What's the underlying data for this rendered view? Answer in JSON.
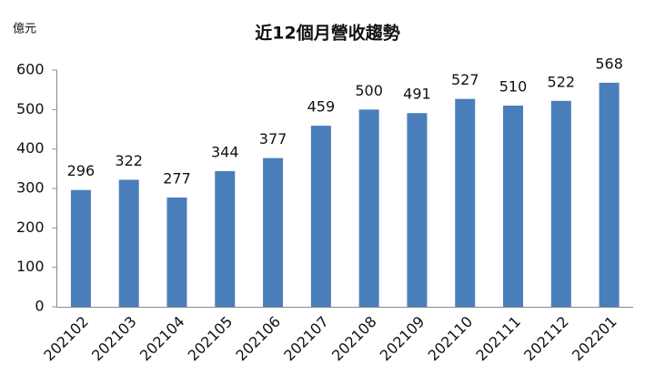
{
  "chart_data": {
    "type": "bar",
    "title": "近12個月營收趨勢",
    "y_label": "億元",
    "categories": [
      "202102",
      "202103",
      "202104",
      "202105",
      "202106",
      "202107",
      "202108",
      "202109",
      "202110",
      "202111",
      "202112",
      "202201"
    ],
    "values": [
      296,
      322,
      277,
      344,
      377,
      459,
      500,
      491,
      527,
      510,
      522,
      568
    ],
    "color": "#4a7ebb",
    "ylim": [
      0,
      600
    ],
    "yticks": [
      0,
      100,
      200,
      300,
      400,
      500,
      600
    ],
    "grid": false
  }
}
